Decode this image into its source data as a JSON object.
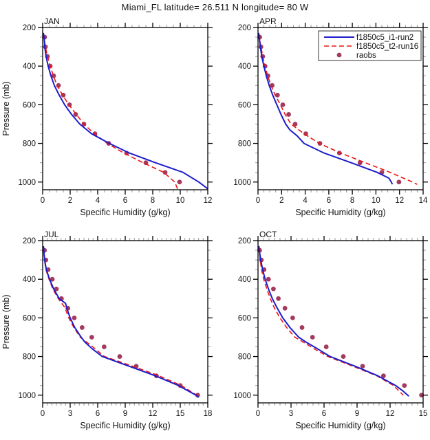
{
  "title": "Miami_FL  latitude= 26.511 N longitude= 80 W",
  "legend": {
    "position": "top-right-of-APR-panel",
    "entries": [
      {
        "label": "f1850c5_i1-run2",
        "style": "solid-line",
        "color": "#1c1ccd"
      },
      {
        "label": "f1850c5_t2-run16",
        "style": "dashed-line",
        "color": "#ee1414"
      },
      {
        "label": "raobs",
        "style": "filled-dot",
        "color": "#a33b5e"
      }
    ]
  },
  "colors": {
    "model1": "#1c1ccd",
    "model2": "#ee1414",
    "raobs": "#a33b5e",
    "axis": "#000000",
    "minor_tick": "#999999",
    "text": "#111111"
  },
  "chart_data": {
    "type": "line",
    "xlabel": "Specific Humidity (g/kg)",
    "ylabel": "Pressure (mb)",
    "ylim": [
      200,
      1040
    ],
    "yticks": [
      200,
      400,
      600,
      800,
      1000
    ],
    "y_minor_step": 50,
    "y_inverted": true,
    "grid": false,
    "panels": [
      {
        "id": "jan",
        "title": "JAN",
        "xlim": [
          0,
          12
        ],
        "xticks": [
          0,
          2,
          4,
          6,
          8,
          10,
          12
        ],
        "x_minor_step": 0.5,
        "show_ylabel": true,
        "show_legend": false,
        "series": {
          "model1": {
            "name": "f1850c5_i1-run2",
            "pressure": [
              228,
              250,
              300,
              350,
              400,
              450,
              500,
              550,
              600,
              650,
              700,
              750,
              800,
              850,
              900,
              950,
              1000,
              1035
            ],
            "value": [
              0.05,
              0.1,
              0.15,
              0.25,
              0.4,
              0.6,
              0.85,
              1.2,
              1.6,
              2.1,
              2.7,
              3.55,
              4.85,
              6.3,
              8.2,
              10.2,
              11.35,
              12.0
            ]
          },
          "model2": {
            "name": "f1850c5_t2-run16",
            "pressure": [
              232,
              250,
              300,
              350,
              400,
              450,
              500,
              550,
              600,
              650,
              700,
              750,
              800,
              850,
              900,
              950,
              1000,
              1035
            ],
            "value": [
              0.07,
              0.1,
              0.2,
              0.35,
              0.55,
              0.78,
              1.05,
              1.45,
              1.9,
              2.45,
              3.0,
              3.75,
              4.7,
              5.9,
              7.3,
              8.8,
              9.6,
              9.8
            ]
          },
          "raobs": {
            "name": "raobs",
            "pressure": [
              250,
              300,
              350,
              400,
              450,
              500,
              550,
              600,
              650,
              700,
              750,
              800,
              850,
              900,
              950,
              1000
            ],
            "value": [
              0.15,
              0.2,
              0.35,
              0.55,
              0.8,
              1.15,
              1.5,
              1.95,
              2.4,
              3.0,
              3.8,
              4.8,
              6.1,
              7.5,
              8.9,
              9.95
            ]
          }
        }
      },
      {
        "id": "apr",
        "title": "APR",
        "xlim": [
          0,
          14
        ],
        "xticks": [
          0,
          2,
          4,
          6,
          8,
          10,
          12,
          14
        ],
        "x_minor_step": 0.5,
        "show_ylabel": false,
        "show_legend": true,
        "series": {
          "model1": {
            "name": "f1850c5_i1-run2",
            "pressure": [
              228,
              250,
              300,
              350,
              400,
              450,
              500,
              550,
              600,
              650,
              700,
              730,
              760,
              800,
              850,
              900,
              950,
              980,
              1000,
              1012
            ],
            "value": [
              0.05,
              0.1,
              0.2,
              0.32,
              0.5,
              0.7,
              0.95,
              1.25,
              1.6,
              1.95,
              2.35,
              2.7,
              3.3,
              3.9,
              5.6,
              7.9,
              10.1,
              11.1,
              11.3,
              11.4
            ]
          },
          "model2": {
            "name": "f1850c5_t2-run16",
            "pressure": [
              232,
              250,
              300,
              350,
              400,
              450,
              500,
              550,
              600,
              650,
              700,
              750,
              800,
              850,
              900,
              950,
              1000,
              1012
            ],
            "value": [
              0.07,
              0.1,
              0.25,
              0.4,
              0.58,
              0.82,
              1.1,
              1.45,
              1.9,
              2.3,
              2.8,
              3.9,
              5.2,
              7.0,
              9.1,
              11.2,
              13.1,
              13.5
            ]
          },
          "raobs": {
            "name": "raobs",
            "pressure": [
              250,
              300,
              350,
              400,
              450,
              500,
              550,
              600,
              650,
              700,
              750,
              800,
              850,
              900,
              950,
              1000
            ],
            "value": [
              0.15,
              0.25,
              0.4,
              0.6,
              0.85,
              1.2,
              1.65,
              2.1,
              2.6,
              3.15,
              4.05,
              5.25,
              6.9,
              8.65,
              10.5,
              11.95
            ]
          }
        }
      },
      {
        "id": "jul",
        "title": "JUL",
        "xlim": [
          0,
          18
        ],
        "xticks": [
          0,
          3,
          6,
          9,
          12,
          15,
          18
        ],
        "x_minor_step": 0.5,
        "show_ylabel": true,
        "show_legend": false,
        "series": {
          "model1": {
            "name": "f1850c5_i1-run2",
            "pressure": [
              228,
              250,
              300,
              350,
              400,
              450,
              500,
              525,
              560,
              600,
              650,
              700,
              725,
              760,
              800,
              850,
              900,
              950,
              1000,
              1012
            ],
            "value": [
              0.08,
              0.12,
              0.22,
              0.4,
              0.75,
              1.2,
              1.8,
              2.5,
              2.7,
              3.0,
              3.5,
              4.2,
              4.6,
              5.4,
              6.5,
              9.4,
              12.3,
              14.8,
              16.7,
              17.0
            ]
          },
          "model2": {
            "name": "f1850c5_t2-run16",
            "pressure": [
              232,
              250,
              300,
              350,
              400,
              450,
              500,
              545,
              600,
              650,
              700,
              750,
              800,
              850,
              900,
              950,
              1000,
              1010
            ],
            "value": [
              0.08,
              0.1,
              0.2,
              0.35,
              0.7,
              1.1,
              1.7,
              2.4,
              2.85,
              3.4,
              4.1,
              5.45,
              6.75,
              9.8,
              12.7,
              15.1,
              16.8,
              17.0
            ]
          },
          "raobs": {
            "name": "raobs",
            "pressure": [
              250,
              300,
              350,
              400,
              450,
              500,
              550,
              600,
              650,
              700,
              750,
              800,
              850,
              900,
              950,
              1000
            ],
            "value": [
              0.2,
              0.35,
              0.6,
              1.05,
              1.5,
              2.05,
              2.75,
              3.45,
              4.3,
              5.35,
              6.7,
              8.4,
              10.2,
              12.4,
              15.0,
              16.9
            ]
          }
        }
      },
      {
        "id": "oct",
        "title": "OCT",
        "xlim": [
          0,
          15
        ],
        "xticks": [
          0,
          3,
          6,
          9,
          12,
          15
        ],
        "x_minor_step": 0.5,
        "show_ylabel": false,
        "show_legend": false,
        "series": {
          "model1": {
            "name": "f1850c5_i1-run2",
            "pressure": [
              228,
              250,
              300,
              350,
              400,
              450,
              500,
              550,
              600,
              650,
              700,
              725,
              760,
              800,
              850,
              900,
              950,
              980,
              1005
            ],
            "value": [
              0.08,
              0.12,
              0.25,
              0.42,
              0.65,
              0.95,
              1.3,
              1.75,
              2.25,
              2.9,
              3.7,
              4.35,
              5.4,
              6.55,
              8.8,
              10.9,
              12.5,
              13.2,
              13.7
            ]
          },
          "model2": {
            "name": "f1850c5_t2-run16",
            "pressure": [
              232,
              250,
              300,
              350,
              400,
              450,
              500,
              550,
              600,
              650,
              700,
              725,
              760,
              800,
              850,
              900,
              950,
              1000
            ],
            "value": [
              0.07,
              0.1,
              0.2,
              0.32,
              0.52,
              0.8,
              1.12,
              1.5,
              2.0,
              2.6,
              3.35,
              4.1,
              5.1,
              6.35,
              8.6,
              10.8,
              12.3,
              13.2
            ]
          },
          "raobs": {
            "name": "raobs",
            "pressure": [
              250,
              300,
              350,
              400,
              450,
              500,
              550,
              600,
              650,
              700,
              750,
              800,
              850,
              900,
              950,
              1000
            ],
            "value": [
              0.15,
              0.3,
              0.55,
              0.95,
              1.4,
              1.85,
              2.45,
              3.15,
              4.0,
              4.95,
              6.2,
              7.75,
              9.5,
              11.4,
              13.3,
              14.85
            ]
          }
        }
      }
    ]
  }
}
